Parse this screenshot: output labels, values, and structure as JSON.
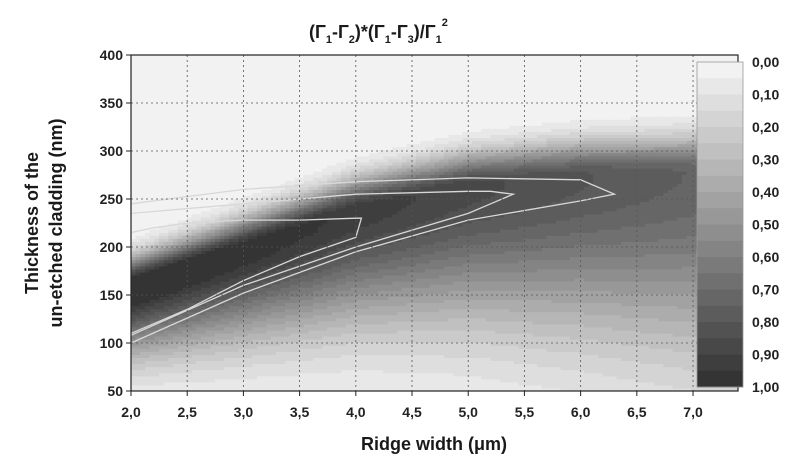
{
  "chart_data": {
    "type": "heatmap",
    "title": "(Γ₁-Γ₂)*(Γ₁-Γ₃)/Γ₁²",
    "title_parts": {
      "base": "(Γ",
      "s1": "1",
      "m1": "-Γ",
      "s2": "2",
      "m2": ")*(Γ",
      "s3": "1",
      "m3": "-Γ",
      "s4": "3",
      "m4": ")/Γ",
      "s5": "1",
      "sup": "2"
    },
    "xlabel": "Ridge width (μm)",
    "ylabel_line1": "Thickness of the",
    "ylabel_line2": "un-etched cladding (nm)",
    "xlim": [
      2.0,
      7.4
    ],
    "ylim": [
      50,
      400
    ],
    "x_ticks": [
      "2,0",
      "2,5",
      "3,0",
      "3,5",
      "4,0",
      "4,5",
      "5,0",
      "5,5",
      "6,0",
      "6,5",
      "7,0"
    ],
    "x_tick_values": [
      2.0,
      2.5,
      3.0,
      3.5,
      4.0,
      4.5,
      5.0,
      5.5,
      6.0,
      6.5,
      7.0
    ],
    "y_ticks": [
      "50",
      "100",
      "150",
      "200",
      "250",
      "300",
      "350",
      "400"
    ],
    "y_tick_values": [
      50,
      100,
      150,
      200,
      250,
      300,
      350,
      400
    ],
    "grid": true,
    "colorscale": "grayscale, white = 0 to black = 1",
    "colorbar_ticks": [
      "0,00",
      "0,10",
      "0,20",
      "0,30",
      "0,40",
      "0,50",
      "0,60",
      "0,70",
      "0,80",
      "0,90",
      "1,00"
    ],
    "colorbar_values": [
      0.0,
      0.1,
      0.2,
      0.3,
      0.4,
      0.5,
      0.6,
      0.7,
      0.8,
      0.9,
      1.0
    ],
    "colorbar_levels": 20,
    "ridge": {
      "x": [
        2.0,
        3.0,
        4.0,
        5.0,
        6.0,
        7.0,
        7.4
      ],
      "center_thickness": [
        160,
        200,
        240,
        265,
        275,
        278,
        280
      ]
    },
    "approx_contour_levels": [
      {
        "level": 0.9,
        "x": [
          2.0,
          2.2,
          2.5,
          3.0,
          3.5,
          4.0,
          4.05
        ],
        "y_lower": [
          110,
          120,
          135,
          165,
          190,
          210,
          230
        ],
        "y_upper": [
          215,
          220,
          225,
          228,
          228,
          230,
          230
        ]
      },
      {
        "level": 0.8,
        "x": [
          2.0,
          3.0,
          4.0,
          5.0,
          5.2,
          5.4
        ],
        "y_lower": [
          108,
          160,
          200,
          235,
          245,
          255
        ],
        "y_upper": [
          235,
          245,
          255,
          258,
          258,
          255
        ]
      },
      {
        "level": 0.7,
        "x": [
          2.0,
          3.0,
          4.0,
          5.0,
          6.0,
          6.3
        ],
        "y_lower": [
          100,
          152,
          195,
          228,
          248,
          255
        ],
        "y_upper": [
          245,
          260,
          268,
          272,
          270,
          255
        ]
      }
    ]
  }
}
